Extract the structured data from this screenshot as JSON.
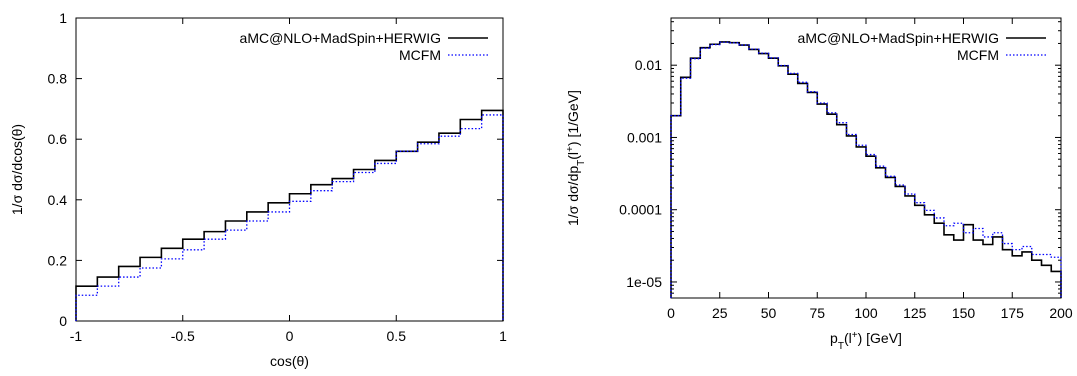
{
  "chart_data": [
    {
      "type": "line",
      "xlabel": "cos(θ)",
      "ylabel": "1/σ dσ/dcos(θ)",
      "xlim": [
        -1,
        1
      ],
      "ylim": [
        0,
        1
      ],
      "xticks": [
        "-1",
        "-0.5",
        "0",
        "0.5",
        "1"
      ],
      "xtick_values": [
        -1,
        -0.5,
        0,
        0.5,
        1
      ],
      "yticks": [
        "0",
        "0.2",
        "0.4",
        "0.6",
        "0.8",
        "1"
      ],
      "ytick_values": [
        0,
        0.2,
        0.4,
        0.6,
        0.8,
        1
      ],
      "log_y": false,
      "legend_position": "top-right",
      "bin_edges": [
        -1,
        -0.9,
        -0.8,
        -0.7,
        -0.6,
        -0.5,
        -0.4,
        -0.3,
        -0.2,
        -0.1,
        0,
        0.1,
        0.2,
        0.3,
        0.4,
        0.5,
        0.6,
        0.7,
        0.8,
        0.9,
        1
      ],
      "series": [
        {
          "name": "aMC@NLO+MadSpin+HERWIG",
          "color": "#000000",
          "style": "solid",
          "values": [
            0.115,
            0.145,
            0.18,
            0.21,
            0.24,
            0.27,
            0.295,
            0.33,
            0.36,
            0.39,
            0.42,
            0.45,
            0.47,
            0.5,
            0.53,
            0.56,
            0.59,
            0.62,
            0.665,
            0.695
          ]
        },
        {
          "name": "MCFM",
          "color": "#0000ff",
          "style": "dotted",
          "values": [
            0.085,
            0.115,
            0.145,
            0.175,
            0.205,
            0.235,
            0.27,
            0.3,
            0.33,
            0.36,
            0.395,
            0.43,
            0.46,
            0.49,
            0.52,
            0.56,
            0.585,
            0.61,
            0.635,
            0.68
          ]
        }
      ]
    },
    {
      "type": "line",
      "xlabel": "pT(l+) [GeV]",
      "ylabel": "1/σ dσ/dpT(l+) [1/GeV]",
      "xlim": [
        0,
        200
      ],
      "ylim": [
        6e-06,
        0.045
      ],
      "xticks": [
        "0",
        "25",
        "50",
        "75",
        "100",
        "125",
        "150",
        "175",
        "200"
      ],
      "xtick_values": [
        0,
        25,
        50,
        75,
        100,
        125,
        150,
        175,
        200
      ],
      "yticks": [
        "1e-05",
        "0.0001",
        "0.001",
        "0.01"
      ],
      "ytick_values": [
        1e-05,
        0.0001,
        0.001,
        0.01
      ],
      "log_y": true,
      "legend_position": "top-right",
      "bin_width": 5,
      "series": [
        {
          "name": "aMC@NLO+MadSpin+HERWIG",
          "color": "#000000",
          "style": "solid",
          "values": [
            0.002,
            0.0068,
            0.0125,
            0.0175,
            0.0195,
            0.021,
            0.0205,
            0.019,
            0.0165,
            0.0145,
            0.0125,
            0.0098,
            0.0075,
            0.0056,
            0.0042,
            0.0029,
            0.0021,
            0.0015,
            0.00105,
            0.00074,
            0.00055,
            0.00038,
            0.00028,
            0.00021,
            0.000155,
            0.000115,
            8.5e-05,
            6.5e-05,
            4.5e-05,
            3.8e-05,
            6.2e-05,
            3.8e-05,
            3.3e-05,
            4.2e-05,
            2.8e-05,
            2.3e-05,
            2.6e-05,
            2e-05,
            1.7e-05,
            1.4e-05
          ]
        },
        {
          "name": "MCFM",
          "color": "#0000ff",
          "style": "dotted",
          "values": [
            0.002,
            0.0066,
            0.0123,
            0.0172,
            0.0193,
            0.0208,
            0.0204,
            0.019,
            0.0167,
            0.0147,
            0.0126,
            0.0099,
            0.0077,
            0.0058,
            0.0043,
            0.003,
            0.0022,
            0.0016,
            0.0011,
            0.00078,
            0.00058,
            0.0004,
            0.00029,
            0.00022,
            0.000165,
            0.000125,
            9.8e-05,
            7.7e-05,
            6e-05,
            6.5e-05,
            4.8e-05,
            5.5e-05,
            4.2e-05,
            4.8e-05,
            3.4e-05,
            2.8e-05,
            3.1e-05,
            2.4e-05,
            2.4e-05,
            2.2e-05
          ]
        }
      ]
    }
  ]
}
